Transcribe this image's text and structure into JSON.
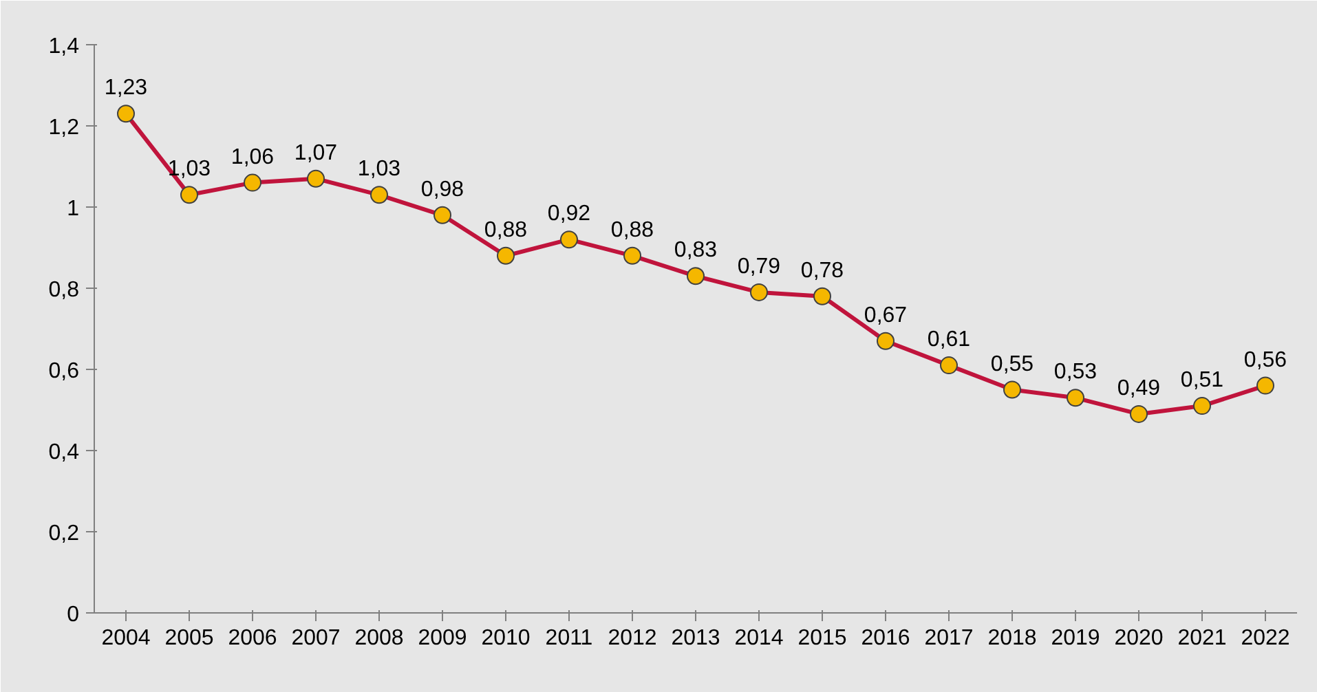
{
  "chart_data": {
    "type": "line",
    "categories": [
      "2004",
      "2005",
      "2006",
      "2007",
      "2008",
      "2009",
      "2010",
      "2011",
      "2012",
      "2013",
      "2014",
      "2015",
      "2016",
      "2017",
      "2018",
      "2019",
      "2020",
      "2021",
      "2022"
    ],
    "series": [
      {
        "color": "#c0143c",
        "values": [
          1.23,
          1.03,
          1.06,
          1.07,
          1.03,
          0.98,
          0.88,
          0.92,
          0.88,
          0.83,
          0.79,
          0.78,
          0.67,
          0.61,
          0.55,
          0.53,
          0.49,
          0.51,
          0.56
        ],
        "value_labels": [
          "1,23",
          "1,03",
          "1,06",
          "1,07",
          "1,03",
          "0,98",
          "0,88",
          "0,92",
          "0,88",
          "0,83",
          "0,79",
          "0,78",
          "0,67",
          "0,61",
          "0,55",
          "0,53",
          "0,49",
          "0,51",
          "0,56"
        ]
      }
    ],
    "ylim": [
      0,
      1.4
    ],
    "yticks": [
      0,
      {
        "value": 0.2,
        "label": "0,2"
      },
      {
        "value": 0.4,
        "label": "0,4"
      },
      {
        "value": 0.6,
        "label": "0,6"
      },
      {
        "value": 0.8,
        "label": "0,8"
      },
      1,
      {
        "value": 1.2,
        "label": "1,2"
      },
      {
        "value": 1.4,
        "label": "1,4"
      }
    ],
    "marker": "circle",
    "line_style": "solid"
  }
}
